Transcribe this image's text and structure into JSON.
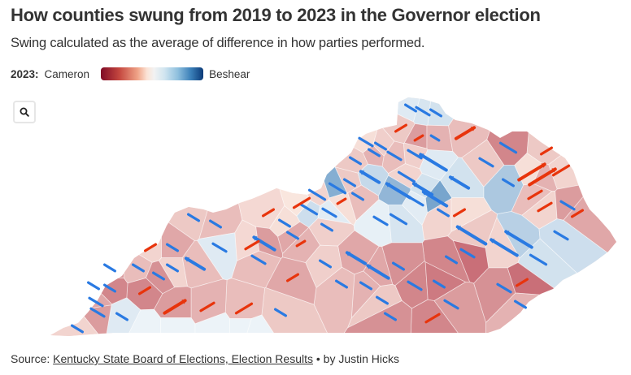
{
  "header": {
    "title": "How counties swung from 2019 to 2023 in the Governor election",
    "subtitle": "Swing calculated as the average of difference in how parties performed."
  },
  "legend": {
    "year_label": "2023:",
    "left_label": "Cameron",
    "right_label": "Beshear",
    "colors": {
      "cameron_dark": "#7f0a26",
      "neutral": "#f2f2f2",
      "beshear_dark": "#0b3a78"
    }
  },
  "controls": {
    "zoom_icon": "search-icon"
  },
  "arrow_colors": {
    "beshear": "#2a7ae2",
    "cameron": "#e8340c"
  },
  "footer": {
    "source_prefix": "Source: ",
    "source_link": "Kentucky State Board of Elections, Election Results",
    "separator": " • ",
    "byline": "by Justin Hicks"
  },
  "chart_data": {
    "type": "heatmap",
    "title": "How counties swung from 2019 to 2023 in the Governor election",
    "subtitle": "Swing calculated as the average of difference in how parties performed.",
    "legend": {
      "label": "2023",
      "min_label": "Cameron",
      "max_label": "Beshear"
    },
    "description": "Kentucky county choropleth (2023 margin) with swing arrows; blue arrows = swing toward Beshear (Democratic), red arrows = swing toward Cameron (Republican); arrow length ~ swing magnitude",
    "counties": [
      {
        "fill": 0.05,
        "swing": -3
      },
      {
        "fill": 0.08,
        "swing": -4
      },
      {
        "fill": 0.1,
        "swing": -3
      },
      {
        "fill": -0.15,
        "swing": 3
      },
      {
        "fill": -0.35,
        "swing": 2
      },
      {
        "fill": -0.25,
        "swing": -2
      },
      {
        "fill": -0.2,
        "swing": 6
      },
      {
        "fill": -0.05,
        "swing": -4
      },
      {
        "fill": -0.12,
        "swing": -3
      },
      {
        "fill": -0.45,
        "swing": -5
      },
      {
        "fill": -0.15,
        "swing": 3
      },
      {
        "fill": -0.1,
        "swing": 5
      },
      {
        "fill": -0.15,
        "swing": -3
      },
      {
        "fill": -0.25,
        "swing": -3
      },
      {
        "fill": -0.2,
        "swing": -4
      },
      {
        "fill": -0.12,
        "swing": -4
      },
      {
        "fill": 0.05,
        "swing": -9
      },
      {
        "fill": -0.15,
        "swing": -3
      },
      {
        "fill": 0.15,
        "swing": -6
      },
      {
        "fill": -0.1,
        "swing": -5
      },
      {
        "fill": -0.25,
        "swing": 9
      },
      {
        "fill": -0.2,
        "swing": 4
      },
      {
        "fill": 0.4,
        "swing": -5
      },
      {
        "fill": -0.05,
        "swing": 2
      },
      {
        "fill": -0.2,
        "swing": -3
      },
      {
        "fill": 0.35,
        "swing": -8
      },
      {
        "fill": 0.1,
        "swing": -6
      },
      {
        "fill": 0.45,
        "swing": -8
      },
      {
        "fill": 0.1,
        "swing": -6
      },
      {
        "fill": -0.15,
        "swing": -4
      },
      {
        "fill": 0.25,
        "swing": -3
      },
      {
        "fill": -0.05,
        "swing": 9
      },
      {
        "fill": -0.1,
        "swing": 4
      },
      {
        "fill": -0.3,
        "swing": 3
      },
      {
        "fill": -0.35,
        "swing": -4
      },
      {
        "fill": -0.1,
        "swing": -5
      },
      {
        "fill": 0.12,
        "swing": -5
      },
      {
        "fill": 0.04,
        "swing": -4
      },
      {
        "fill": -0.02,
        "swing": 5
      },
      {
        "fill": -0.15,
        "swing": -3
      },
      {
        "fill": -0.2,
        "swing": -3
      },
      {
        "fill": -0.08,
        "swing": 3
      },
      {
        "fill": -0.05,
        "swing": -3
      },
      {
        "fill": -0.12,
        "swing": -3
      },
      {
        "fill": -0.3,
        "swing": -3
      },
      {
        "fill": -0.25,
        "swing": 2
      },
      {
        "fill": -0.35,
        "swing": -7
      },
      {
        "fill": -0.2,
        "swing": -4
      },
      {
        "fill": -0.08,
        "swing": 4
      },
      {
        "fill": 0.05,
        "swing": -4
      },
      {
        "fill": -0.2,
        "swing": -6
      },
      {
        "fill": -0.1,
        "swing": -3
      },
      {
        "fill": -0.3,
        "swing": -3
      },
      {
        "fill": 0.02,
        "swing": -4
      },
      {
        "fill": 0.08,
        "swing": -5
      },
      {
        "fill": -0.1,
        "swing": -3
      },
      {
        "fill": -0.05,
        "swing": 3
      },
      {
        "fill": 0.04,
        "swing": -4
      },
      {
        "fill": -0.15,
        "swing": -10
      },
      {
        "fill": -0.1,
        "swing": -9
      },
      {
        "fill": 0.2,
        "swing": -9
      },
      {
        "fill": 0.1,
        "swing": -5
      },
      {
        "fill": 0.12,
        "swing": -4
      },
      {
        "fill": -0.55,
        "swing": -4
      },
      {
        "fill": -0.45,
        "swing": -3
      },
      {
        "fill": -0.4,
        "swing": -3
      },
      {
        "fill": -0.3,
        "swing": -7
      },
      {
        "fill": -0.3,
        "swing": -6
      },
      {
        "fill": -0.45,
        "swing": -4
      },
      {
        "fill": -0.5,
        "swing": -3
      },
      {
        "fill": -0.4,
        "swing": -4
      },
      {
        "fill": -0.55,
        "swing": 3
      },
      {
        "fill": -0.25,
        "swing": -3
      },
      {
        "fill": -0.35,
        "swing": -4
      },
      {
        "fill": -0.45,
        "swing": 4
      },
      {
        "fill": -0.4,
        "swing": -3
      },
      {
        "fill": -0.25,
        "swing": -3
      },
      {
        "fill": -0.15,
        "swing": -3
      },
      {
        "fill": -0.2,
        "swing": -3
      },
      {
        "fill": -0.12,
        "swing": -3
      },
      {
        "fill": -0.3,
        "swing": 3
      },
      {
        "fill": -0.15,
        "swing": -3
      },
      {
        "fill": -0.2,
        "swing": 5
      },
      {
        "fill": -0.25,
        "swing": 4
      },
      {
        "fill": -0.35,
        "swing": 7
      },
      {
        "fill": -0.45,
        "swing": 3
      },
      {
        "fill": 0.05,
        "swing": -3
      },
      {
        "fill": -0.35,
        "swing": -4
      },
      {
        "fill": -0.4,
        "swing": -3
      },
      {
        "fill": -0.3,
        "swing": -4
      },
      {
        "fill": -0.1,
        "swing": -3
      },
      {
        "fill": -0.45,
        "swing": -3
      },
      {
        "fill": -0.2,
        "swing": -3
      },
      {
        "fill": -0.4,
        "swing": -3
      },
      {
        "fill": -0.1,
        "swing": 3
      },
      {
        "fill": -0.35,
        "swing": -3
      }
    ]
  }
}
